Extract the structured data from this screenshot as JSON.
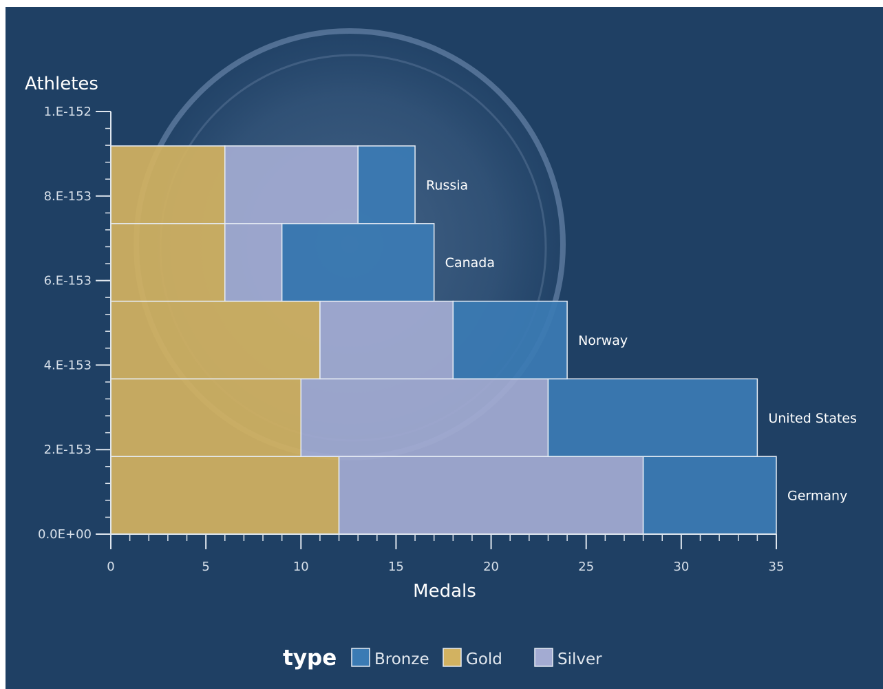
{
  "chart_data": {
    "type": "bar",
    "orientation": "horizontal",
    "stacked": true,
    "xlabel": "Medals",
    "ylabel": "Athletes",
    "xlim": [
      0,
      35
    ],
    "x_ticks": [
      "0",
      "5",
      "10",
      "15",
      "20",
      "25",
      "30",
      "35"
    ],
    "ylim": [
      0,
      1e-152
    ],
    "y_ticks": [
      "0.0E+00",
      "2.E-153",
      "4.E-153",
      "6.E-153",
      "8.E-153",
      "1.E-152"
    ],
    "categories": [
      "Germany",
      "United States",
      "Norway",
      "Canada",
      "Russia"
    ],
    "series": [
      {
        "name": "Gold",
        "color": "#d2b261",
        "values": [
          12,
          10,
          11,
          6,
          6
        ]
      },
      {
        "name": "Silver",
        "color": "#a3abd2",
        "values": [
          16,
          13,
          7,
          3,
          7
        ]
      },
      {
        "name": "Bronze",
        "color": "#3b7bb4",
        "values": [
          7,
          11,
          6,
          8,
          3
        ]
      }
    ],
    "legend": {
      "title": "type",
      "position": "bottom",
      "entries": [
        {
          "label": "Bronze",
          "color": "#3b7bb4"
        },
        {
          "label": "Gold",
          "color": "#d2b261"
        },
        {
          "label": "Silver",
          "color": "#a3abd2"
        }
      ]
    },
    "grid": false
  }
}
